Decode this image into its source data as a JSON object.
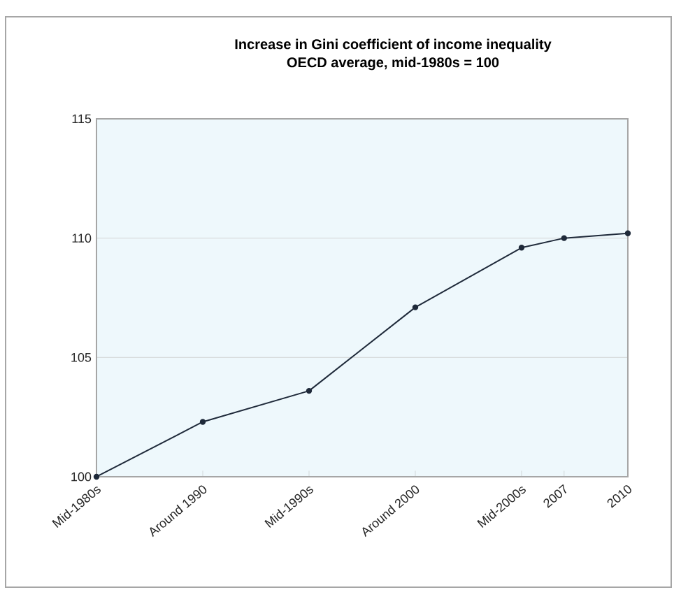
{
  "chart_data": {
    "type": "line",
    "title": "Increase in Gini coefficient of income inequality",
    "subtitle": "OECD average, mid-1980s = 100",
    "x": [
      1985,
      1990,
      1995,
      2000,
      2005,
      2007,
      2010
    ],
    "series": [
      {
        "color": "#1f2a3a",
        "values": [
          100,
          102.3,
          103.6,
          107.1,
          109.6,
          110.0,
          110.2
        ]
      }
    ],
    "xlim": [
      1985,
      2010
    ],
    "xticks": [
      {
        "value": 1985,
        "label": "Mid-1980s"
      },
      {
        "value": 1990,
        "label": "Around 1990"
      },
      {
        "value": 1995,
        "label": "Mid-1990s"
      },
      {
        "value": 2000,
        "label": "Around 2000"
      },
      {
        "value": 2005,
        "label": "Mid-2000s"
      },
      {
        "value": 2007,
        "label": "2007"
      },
      {
        "value": 2010,
        "label": "2010"
      }
    ],
    "ylim": [
      100,
      115
    ],
    "yticks": [
      100,
      105,
      110,
      115
    ],
    "grid": "y",
    "marker": "circle",
    "line_style": "solid"
  }
}
